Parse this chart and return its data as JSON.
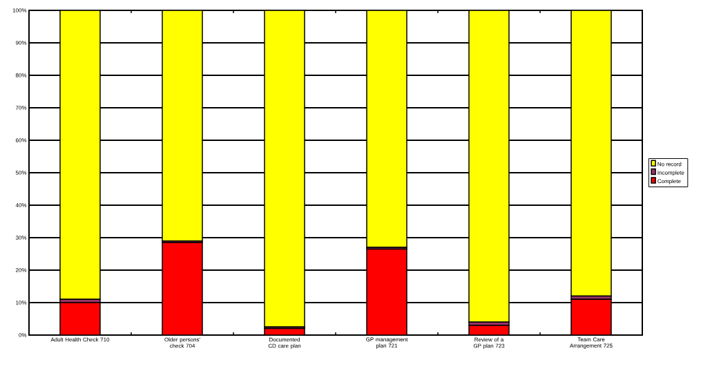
{
  "chart_data": {
    "type": "bar",
    "stacked": true,
    "categories": [
      "Adult Health Check 710",
      "Older persons' check 704",
      "Documented CD care plan",
      "GP management plan 721",
      "Review of a GP plan 723",
      "Team Care Arrangement 725"
    ],
    "series": [
      {
        "name": "Complete",
        "color": "#ff0000",
        "values": [
          10,
          28.5,
          2,
          26.5,
          3,
          11
        ]
      },
      {
        "name": "Incomplete",
        "color": "#993366",
        "values": [
          1,
          0.5,
          0.5,
          0.5,
          1,
          1
        ]
      },
      {
        "name": "No record",
        "color": "#ffff00",
        "values": [
          89,
          71,
          97.5,
          73,
          96,
          88
        ]
      }
    ],
    "ylim": [
      0,
      100
    ],
    "yticks": [
      {
        "value": 0,
        "label": "0%"
      },
      {
        "value": 10,
        "label": "10%"
      },
      {
        "value": 20,
        "label": "20%"
      },
      {
        "value": 30,
        "label": "30%"
      },
      {
        "value": 40,
        "label": "40%"
      },
      {
        "value": 50,
        "label": "50%"
      },
      {
        "value": 60,
        "label": "60%"
      },
      {
        "value": 70,
        "label": "70%"
      },
      {
        "value": 80,
        "label": "80%"
      },
      {
        "value": 90,
        "label": "90%"
      },
      {
        "value": 100,
        "label": "100%"
      }
    ],
    "grid": "y",
    "legend": "right"
  }
}
